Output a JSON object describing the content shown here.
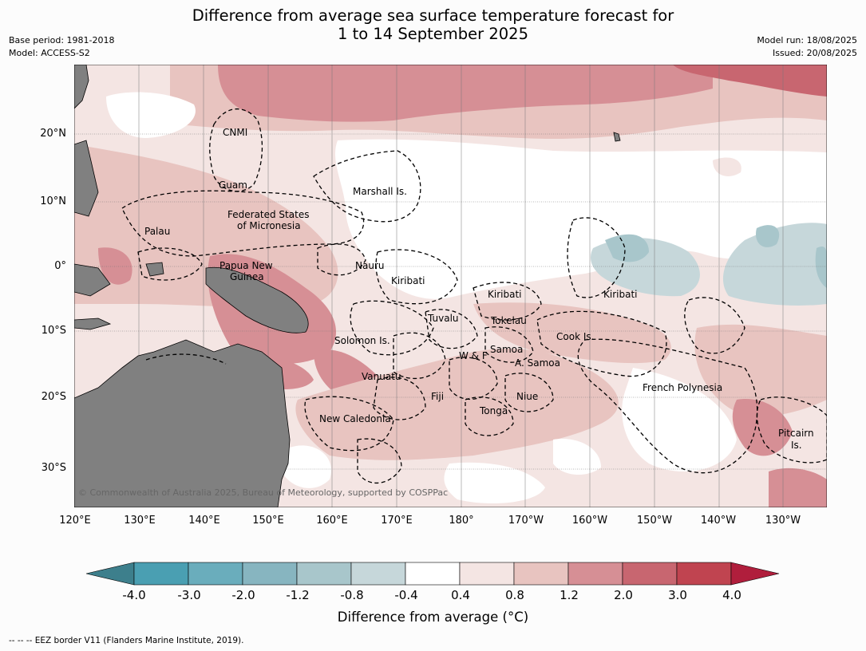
{
  "title": {
    "line1": "Difference from average sea surface temperature forecast for",
    "line2": "1 to 14 September 2025"
  },
  "meta": {
    "base_period": "Base period: 1981-2018",
    "model": "Model: ACCESS-S2",
    "model_run": "Model run: 18/08/2025",
    "issued": "Issued: 20/08/2025"
  },
  "copyright": "© Commonwealth of Australia 2025, Bureau of Meteorology, supported by COSPPac",
  "axes": {
    "lat_labels": [
      "20°N",
      "10°N",
      "0°",
      "10°S",
      "20°S",
      "30°S"
    ],
    "lon_labels": [
      "120°E",
      "130°E",
      "140°E",
      "150°E",
      "160°E",
      "170°E",
      "180°",
      "170°W",
      "160°W",
      "150°W",
      "140°W",
      "130°W"
    ]
  },
  "regions": {
    "cnmi": "CNMI",
    "guam": "Guam",
    "marshall": "Marshall Is.",
    "fsm1": "Federated States",
    "fsm2": "of Micronesia",
    "palau": "Palau",
    "nauru": "Nauru",
    "png1": "Papua New",
    "png2": "Guinea",
    "kiribati_w": "Kiribati",
    "kiribati_c": "Kiribati",
    "kiribati_e": "Kiribati",
    "tuvalu": "Tuvalu",
    "tokelau": "Tokelau",
    "cook": "Cook Is.",
    "solomon": "Solomon Is.",
    "samoa": "Samoa",
    "wf": "W & F",
    "asamoa": "A. Samoa",
    "vanuatu": "Vanuatu",
    "fiji": "Fiji",
    "niue": "Niue",
    "tonga": "Tonga",
    "frenchpoly": "French Polynesia",
    "newcal": "New Caledonia",
    "pitcairn1": "Pitcairn",
    "pitcairn2": "Is."
  },
  "colorbar": {
    "ticks": [
      "-4.0",
      "-3.0",
      "-2.0",
      "-1.2",
      "-0.8",
      "-0.4",
      "0.4",
      "0.8",
      "1.2",
      "2.0",
      "3.0",
      "4.0"
    ],
    "colors": [
      "#3d7f8c",
      "#4a9fb2",
      "#6aadbc",
      "#87b5c0",
      "#a8c6cb",
      "#c6d7da",
      "#ffffff",
      "#f4e5e3",
      "#e8c4c0",
      "#d68f95",
      "#c86670",
      "#c04450",
      "#b01e3c"
    ],
    "title": "Difference from average (°C)"
  },
  "footnote": "--  --  -- EEZ border V11 (Flanders Marine Institute, 2019)."
}
